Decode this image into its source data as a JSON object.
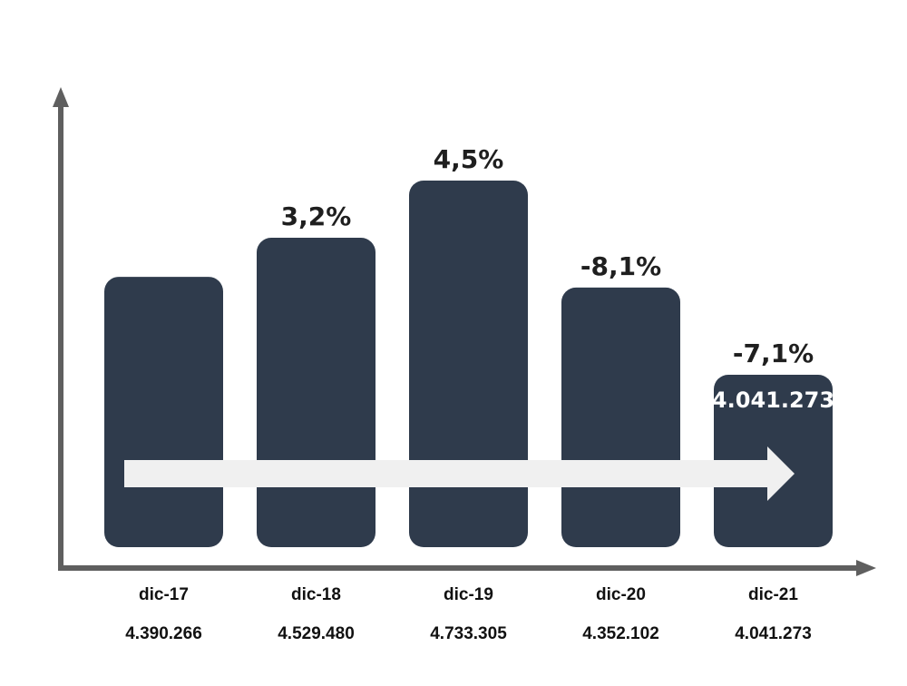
{
  "chart_data": {
    "type": "bar",
    "categories": [
      "dic-17",
      "dic-18",
      "dic-19",
      "dic-20",
      "dic-21"
    ],
    "values": [
      4390266,
      4529480,
      4733305,
      4352102,
      4041273
    ],
    "value_labels": [
      "4.390.266",
      "4.529.480",
      "4.733.305",
      "4.352.102",
      "4.041.273"
    ],
    "change_labels": [
      "",
      "3,2%",
      "4,5%",
      "-8,1%",
      "-7,1%"
    ],
    "highlight_label": "4.041.273",
    "title": "",
    "xlabel": "",
    "ylabel": "",
    "colors": {
      "bar": "#2f3b4c",
      "axis": "#5f5f5f",
      "arrow": "#f0f0f0",
      "text": "#1f1f1f"
    }
  }
}
